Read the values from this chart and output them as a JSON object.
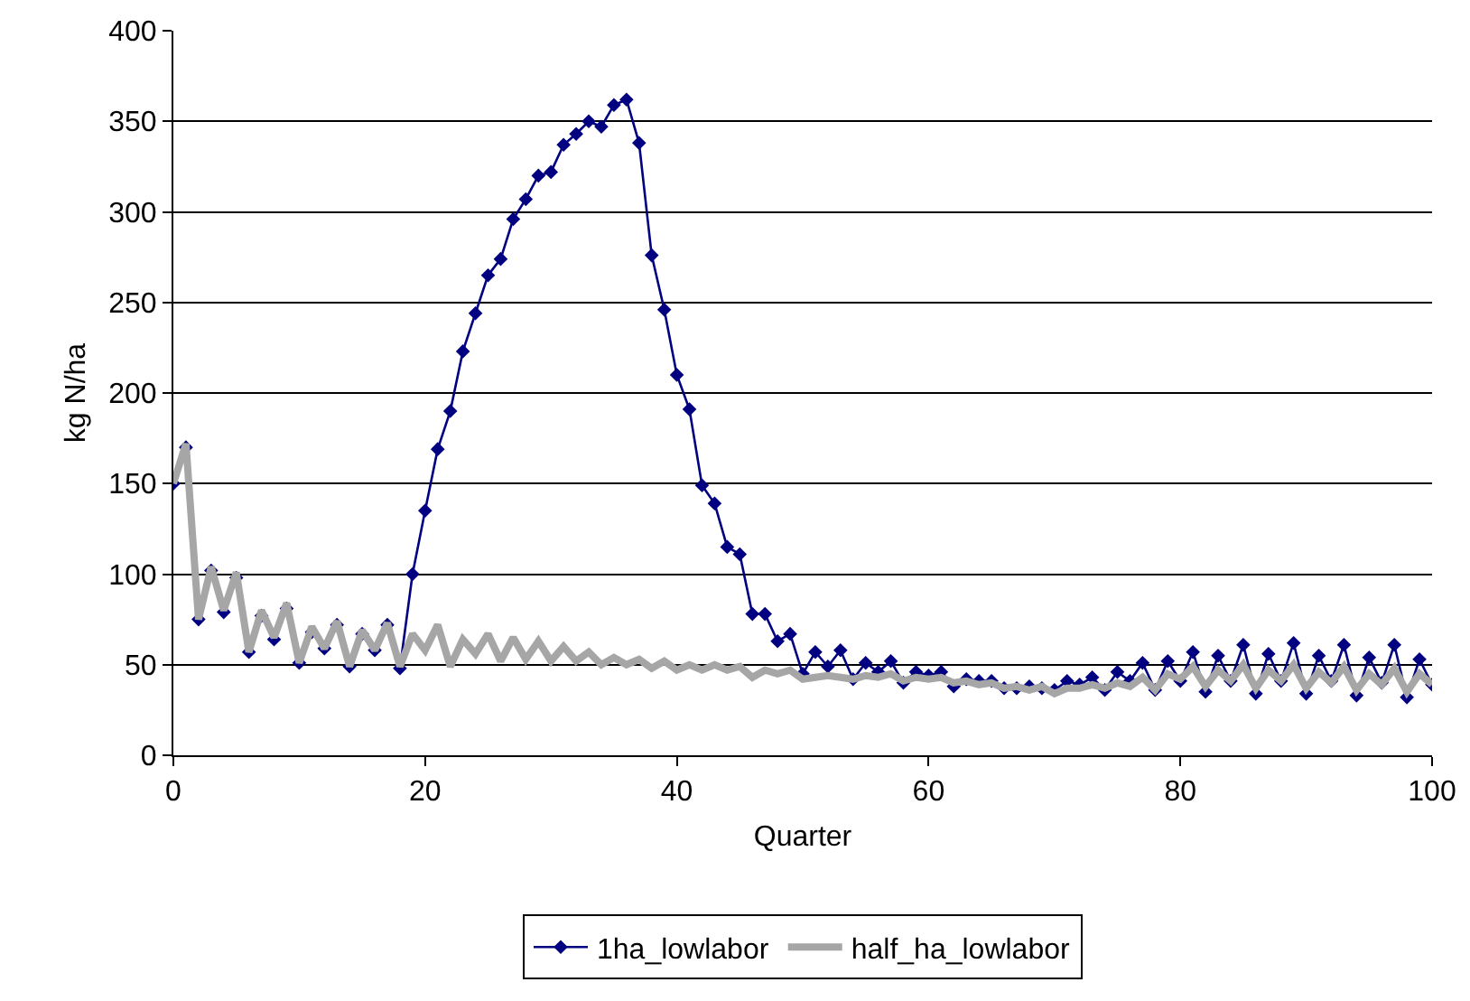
{
  "chart_data": {
    "type": "line",
    "xlabel": "Quarter",
    "ylabel": "kg N/ha",
    "x": [
      0,
      1,
      2,
      3,
      4,
      5,
      6,
      7,
      8,
      9,
      10,
      11,
      12,
      13,
      14,
      15,
      16,
      17,
      18,
      19,
      20,
      21,
      22,
      23,
      24,
      25,
      26,
      27,
      28,
      29,
      30,
      31,
      32,
      33,
      34,
      35,
      36,
      37,
      38,
      39,
      40,
      41,
      42,
      43,
      44,
      45,
      46,
      47,
      48,
      49,
      50,
      51,
      52,
      53,
      54,
      55,
      56,
      57,
      58,
      59,
      60,
      61,
      62,
      63,
      64,
      65,
      66,
      67,
      68,
      69,
      70,
      71,
      72,
      73,
      74,
      75,
      76,
      77,
      78,
      79,
      80,
      81,
      82,
      83,
      84,
      85,
      86,
      87,
      88,
      89,
      90,
      91,
      92,
      93,
      94,
      95,
      96,
      97,
      98,
      99,
      100
    ],
    "series": [
      {
        "name": "1ha_lowlabor",
        "color": "#000080",
        "marker": "diamond",
        "values": [
          150,
          170,
          75,
          102,
          79,
          98,
          57,
          77,
          64,
          81,
          51,
          68,
          59,
          72,
          49,
          67,
          58,
          72,
          48,
          100,
          135,
          169,
          190,
          223,
          244,
          265,
          274,
          296,
          307,
          320,
          322,
          337,
          343,
          350,
          347,
          359,
          362,
          338,
          276,
          246,
          210,
          191,
          149,
          139,
          115,
          111,
          78,
          78,
          63,
          67,
          45,
          57,
          49,
          58,
          42,
          51,
          46,
          52,
          40,
          46,
          44,
          46,
          38,
          42,
          41,
          41,
          37,
          37,
          38,
          37,
          36,
          41,
          39,
          43,
          36,
          46,
          41,
          51,
          36,
          52,
          41,
          57,
          35,
          55,
          41,
          61,
          34,
          56,
          41,
          62,
          34,
          55,
          41,
          61,
          33,
          54,
          40,
          61,
          32,
          53,
          39
        ]
      },
      {
        "name": "half_ha_lowlabor",
        "color": "#a6a6a6",
        "marker": "none",
        "values": [
          150,
          172,
          75,
          104,
          80,
          101,
          57,
          80,
          65,
          84,
          51,
          71,
          59,
          74,
          49,
          69,
          58,
          73,
          49,
          67,
          58,
          72,
          49,
          64,
          56,
          67,
          52,
          65,
          53,
          63,
          52,
          60,
          52,
          57,
          50,
          54,
          50,
          53,
          48,
          52,
          47,
          50,
          47,
          50,
          47,
          49,
          43,
          47,
          45,
          47,
          42,
          43,
          44,
          43,
          42,
          44,
          43,
          45,
          41,
          43,
          42,
          43,
          40,
          41,
          39,
          40,
          37,
          38,
          36,
          38,
          34,
          37,
          37,
          39,
          37,
          40,
          38,
          43,
          36,
          45,
          42,
          49,
          38,
          47,
          41,
          50,
          37,
          47,
          41,
          50,
          37,
          46,
          40,
          49,
          36,
          45,
          39,
          48,
          35,
          45,
          39
        ]
      }
    ],
    "xlim": [
      0,
      100
    ],
    "xticks": [
      0,
      20,
      40,
      60,
      80,
      100
    ],
    "ylim": [
      0,
      400
    ],
    "yticks": [
      0,
      50,
      100,
      150,
      200,
      250,
      300,
      350,
      400
    ],
    "grid": "y",
    "legend": "bottom",
    "line_style": "solid"
  }
}
